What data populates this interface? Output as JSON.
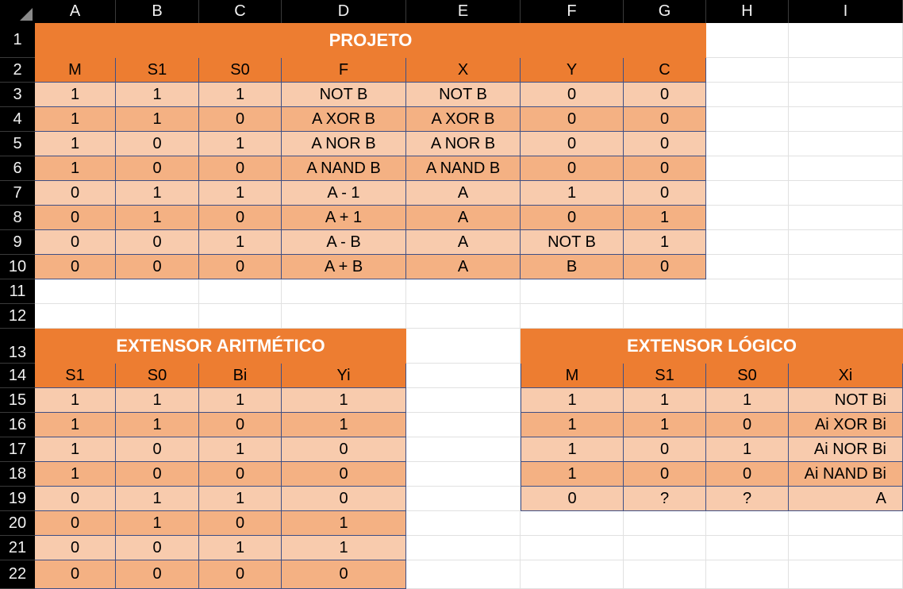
{
  "columns": [
    "A",
    "B",
    "C",
    "D",
    "E",
    "F",
    "G",
    "H",
    "I"
  ],
  "rows": [
    "1",
    "2",
    "3",
    "4",
    "5",
    "6",
    "7",
    "8",
    "9",
    "10",
    "11",
    "12",
    "13",
    "14",
    "15",
    "16",
    "17",
    "18",
    "19",
    "20",
    "21",
    "22"
  ],
  "projeto": {
    "title": "PROJETO",
    "headers": [
      "M",
      "S1",
      "S0",
      "F",
      "X",
      "Y",
      "C"
    ],
    "rows": [
      [
        "1",
        "1",
        "1",
        "NOT B",
        "NOT B",
        "0",
        "0"
      ],
      [
        "1",
        "1",
        "0",
        "A XOR B",
        "A XOR B",
        "0",
        "0"
      ],
      [
        "1",
        "0",
        "1",
        "A NOR B",
        "A NOR B",
        "0",
        "0"
      ],
      [
        "1",
        "0",
        "0",
        "A NAND B",
        "A NAND B",
        "0",
        "0"
      ],
      [
        "0",
        "1",
        "1",
        "A - 1",
        "A",
        "1",
        "0"
      ],
      [
        "0",
        "1",
        "0",
        "A + 1",
        "A",
        "0",
        "1"
      ],
      [
        "0",
        "0",
        "1",
        "A - B",
        "A",
        "NOT B",
        "1"
      ],
      [
        "0",
        "0",
        "0",
        "A + B",
        "A",
        "B",
        "0"
      ]
    ]
  },
  "aritmetico": {
    "title": "EXTENSOR ARITMÉTICO",
    "headers": [
      "S1",
      "S0",
      "Bi",
      "Yi"
    ],
    "rows": [
      [
        "1",
        "1",
        "1",
        "1"
      ],
      [
        "1",
        "1",
        "0",
        "1"
      ],
      [
        "1",
        "0",
        "1",
        "0"
      ],
      [
        "1",
        "0",
        "0",
        "0"
      ],
      [
        "0",
        "1",
        "1",
        "0"
      ],
      [
        "0",
        "1",
        "0",
        "1"
      ],
      [
        "0",
        "0",
        "1",
        "1"
      ],
      [
        "0",
        "0",
        "0",
        "0"
      ]
    ]
  },
  "logico": {
    "title": "EXTENSOR LÓGICO",
    "headers": [
      "M",
      "S1",
      "S0",
      "Xi"
    ],
    "rows": [
      [
        "1",
        "1",
        "1",
        "NOT Bi"
      ],
      [
        "1",
        "1",
        "0",
        "Ai XOR Bi"
      ],
      [
        "1",
        "0",
        "1",
        "Ai NOR Bi"
      ],
      [
        "1",
        "0",
        "0",
        "Ai NAND Bi"
      ],
      [
        "0",
        "?",
        "?",
        "A"
      ]
    ]
  },
  "colors": {
    "header": "#ed7d31",
    "row_light": "#f8cbad",
    "row_dark": "#f4b183",
    "border": "#3e4f86"
  }
}
